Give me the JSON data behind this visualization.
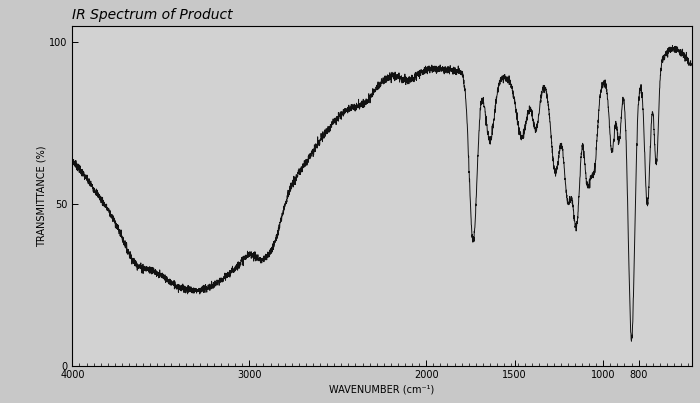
{
  "title": "IR Spectrum of Product",
  "xlabel": "WAVENUMBER (cm⁻¹)",
  "ylabel": "TRANSMITTANCE (%)",
  "xlim": [
    4000,
    500
  ],
  "ylim": [
    0,
    105
  ],
  "yticks": [
    0,
    50,
    100
  ],
  "xticks": [
    4000,
    3000,
    2000,
    1500,
    1000,
    800
  ],
  "xtick_labels": [
    "4000",
    "3000",
    "2000",
    "1500",
    "1000",
    "800"
  ],
  "bg_color": "#c8c8c8",
  "plot_bg_color": "#d2d2d2",
  "line_color": "#111111",
  "title_fontsize": 10,
  "axis_label_fontsize": 7,
  "tick_fontsize": 7
}
